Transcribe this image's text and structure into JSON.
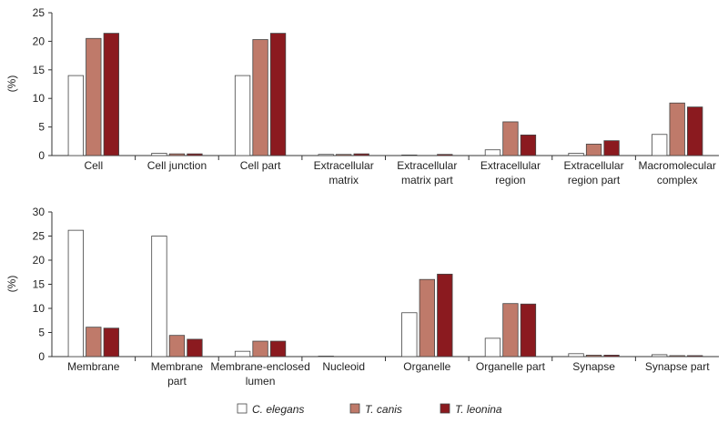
{
  "colors": {
    "c_elegans": "#ffffff",
    "t_canis": "#bf7a6a",
    "t_leonina": "#8b1a1f",
    "axis": "#333333"
  },
  "legend": {
    "items": [
      {
        "label": "C. elegans",
        "color_key": "c_elegans"
      },
      {
        "label": "T. canis",
        "color_key": "t_canis"
      },
      {
        "label": "T. leonina",
        "color_key": "t_leonina"
      }
    ]
  },
  "chart_data": [
    {
      "type": "bar",
      "ylabel": "(%)",
      "xlabel": "",
      "title": "",
      "ylim": [
        0,
        25
      ],
      "yticks": [
        0,
        5,
        10,
        15,
        20,
        25
      ],
      "grid": false,
      "legend_position": "bottom-center",
      "categories": [
        [
          "Cell"
        ],
        [
          "Cell junction"
        ],
        [
          "Cell part"
        ],
        [
          "Extracellular",
          "matrix"
        ],
        [
          "Extracellular",
          "matrix part"
        ],
        [
          "Extracellular",
          "region"
        ],
        [
          "Extracellular",
          "region part"
        ],
        [
          "Macromolecular",
          "complex"
        ]
      ],
      "series": [
        {
          "name": "C. elegans",
          "color_key": "c_elegans",
          "values": [
            14.0,
            0.4,
            14.0,
            0.2,
            0.1,
            1.0,
            0.4,
            3.7
          ]
        },
        {
          "name": "T. canis",
          "color_key": "t_canis",
          "values": [
            20.5,
            0.3,
            20.3,
            0.2,
            0.0,
            5.9,
            2.0,
            9.2
          ]
        },
        {
          "name": "T. leonina",
          "color_key": "t_leonina",
          "values": [
            21.4,
            0.3,
            21.4,
            0.3,
            0.2,
            3.6,
            2.6,
            8.5
          ]
        }
      ]
    },
    {
      "type": "bar",
      "ylabel": "(%)",
      "xlabel": "",
      "title": "",
      "ylim": [
        0,
        30
      ],
      "yticks": [
        0,
        5,
        10,
        15,
        20,
        25,
        30
      ],
      "grid": false,
      "legend_position": "bottom-center",
      "categories": [
        [
          "Membrane"
        ],
        [
          "Membrane",
          "part"
        ],
        [
          "Membrane-enclosed",
          "lumen"
        ],
        [
          "Nucleoid"
        ],
        [
          "Organelle"
        ],
        [
          "Organelle part"
        ],
        [
          "Synapse"
        ],
        [
          "Synapse part"
        ]
      ],
      "series": [
        {
          "name": "C. elegans",
          "color_key": "c_elegans",
          "values": [
            26.2,
            25.0,
            1.1,
            0.1,
            9.1,
            3.8,
            0.6,
            0.4
          ]
        },
        {
          "name": "T. canis",
          "color_key": "t_canis",
          "values": [
            6.1,
            4.4,
            3.2,
            0.0,
            16.0,
            11.0,
            0.3,
            0.2
          ]
        },
        {
          "name": "T. leonina",
          "color_key": "t_leonina",
          "values": [
            5.9,
            3.6,
            3.2,
            0.0,
            17.1,
            10.9,
            0.3,
            0.2
          ]
        }
      ]
    }
  ]
}
